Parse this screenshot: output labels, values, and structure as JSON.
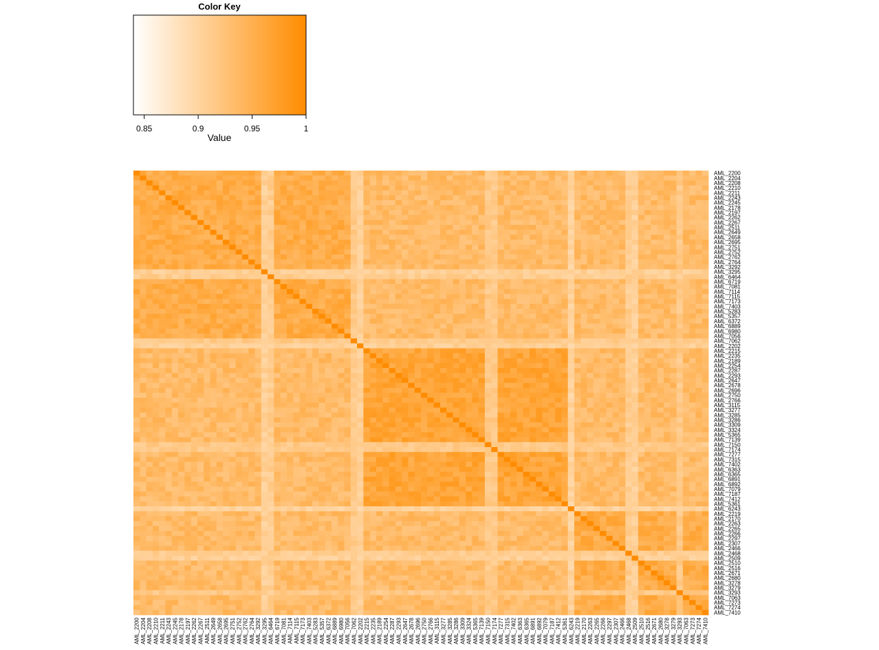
{
  "color_key": {
    "title": "Color Key",
    "xlabel": "Value",
    "ticks": [
      "0.85",
      "0.9",
      "0.95",
      "1"
    ],
    "tick_values": [
      0.85,
      0.9,
      0.95,
      1
    ],
    "range": [
      0.84,
      1.0
    ],
    "color_low": "#ffffff",
    "color_high": "#ff8c00"
  },
  "chart_data": {
    "type": "heatmap",
    "title": "",
    "xlabel": "",
    "ylabel": "",
    "value_range": [
      0.84,
      1.0
    ],
    "diagonal_value": 1.0,
    "labels": [
      "AML_2200",
      "AML_2204",
      "AML_2208",
      "AML_2210",
      "AML_2211",
      "AML_2243",
      "AML_2245",
      "AML_2178",
      "AML_2197",
      "AML_2262",
      "AML_2267",
      "AML_2511",
      "AML_2649",
      "AML_2658",
      "AML_2695",
      "AML_2751",
      "AML_2752",
      "AML_2762",
      "AML_2764",
      "AML_3292",
      "AML_3295",
      "AML_6464",
      "AML_6719",
      "AML_7081",
      "AML_7114",
      "AML_7115",
      "AML_7173",
      "AML_7403",
      "AML_5283",
      "AML_5357",
      "AML_6372",
      "AML_6889",
      "AML_6980",
      "AML_7056",
      "AML_7062",
      "AML_2202",
      "AML_2215",
      "AML_2235",
      "AML_2189",
      "AML_2254",
      "AML_2287",
      "AML_2293",
      "AML_2647",
      "AML_2678",
      "AML_2696",
      "AML_2750",
      "AML_2766",
      "AML_3115",
      "AML_3277",
      "AML_3285",
      "AML_3286",
      "AML_3309",
      "AML_3324",
      "AML_5365",
      "AML_7139",
      "AML_7150",
      "AML_7174",
      "AML_7277",
      "AML_7315",
      "AML_7402",
      "AML_6363",
      "AML_6365",
      "AML_6891",
      "AML_6892",
      "AML_7079",
      "AML_7187",
      "AML_7412",
      "AML_5361",
      "AML_6243",
      "AML_2219",
      "AML_2170",
      "AML_2263",
      "AML_2265",
      "AML_2266",
      "AML_2297",
      "AML_2307",
      "AML_2466",
      "AML_2468",
      "AML_2509",
      "AML_2510",
      "AML_2516",
      "AML_2671",
      "AML_2680",
      "AML_3278",
      "AML_3279",
      "AML_3293",
      "AML_7063",
      "AML_7273",
      "AML_7274",
      "AML_7410"
    ],
    "clusters": [
      {
        "start": 0,
        "end": 35,
        "within_value": 0.955
      },
      {
        "start": 35,
        "end": 69,
        "within_value": 0.965
      },
      {
        "start": 69,
        "end": 90,
        "within_value": 0.955
      }
    ],
    "between_value": 0.935,
    "pale_samples": [
      {
        "label": "AML_3295",
        "value": 0.905
      },
      {
        "label": "AML_6464",
        "value": 0.91
      },
      {
        "label": "AML_7062",
        "value": 0.915
      },
      {
        "label": "AML_2202",
        "value": 0.905
      },
      {
        "label": "AML_7150",
        "value": 0.915
      },
      {
        "label": "AML_7174",
        "value": 0.915
      },
      {
        "label": "AML_6243",
        "value": 0.9
      },
      {
        "label": "AML_2468",
        "value": 0.91
      },
      {
        "label": "AML_2509",
        "value": 0.905
      },
      {
        "label": "AML_3293",
        "value": 0.915
      }
    ]
  }
}
